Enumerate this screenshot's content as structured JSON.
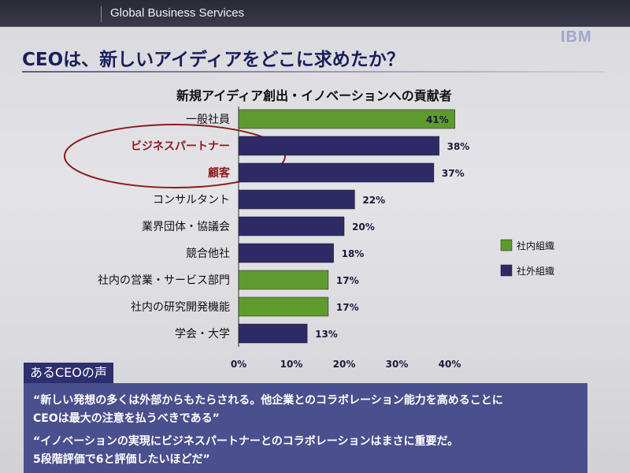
{
  "header": {
    "text": "Global Business Services",
    "logo": "IBM"
  },
  "page_title": "CEOは、新しいアイディアをどこに求めたか？",
  "chart_data": {
    "type": "bar",
    "orientation": "horizontal",
    "title": "新規アイディア創出・イノベーションへの貢献者",
    "categories": [
      "一般社員",
      "ビジネスパートナー",
      "顧客",
      "コンサルタント",
      "業界団体・協議会",
      "競合他社",
      "社内の営業・サービス部門",
      "社内の研究開発機能",
      "学会・大学"
    ],
    "values": [
      41,
      38,
      37,
      22,
      20,
      18,
      17,
      17,
      13
    ],
    "value_labels": [
      "41%",
      "38%",
      "37%",
      "22%",
      "20%",
      "18%",
      "17%",
      "17%",
      "13%"
    ],
    "groups": [
      "社内組織",
      "社外組織",
      "社外組織",
      "社外組織",
      "社外組織",
      "社外組織",
      "社内組織",
      "社内組織",
      "社外組織"
    ],
    "highlighted": [
      "ビジネスパートナー",
      "顧客"
    ],
    "xlim": [
      0,
      40
    ],
    "xticks": [
      0,
      10,
      20,
      30,
      40
    ],
    "xtick_labels": [
      "0%",
      "10%",
      "20%",
      "30%",
      "40%"
    ],
    "legend": [
      {
        "name": "社内組織",
        "color": "#5f9a2e"
      },
      {
        "name": "社外組織",
        "color": "#2e2a66"
      }
    ],
    "legend_position": "right",
    "grid": false
  },
  "colors": {
    "internal": "#5f9a2e",
    "external": "#2e2a66",
    "highlight_circle": "#8b1a1a"
  },
  "voices": {
    "heading": "あるCEOの声",
    "quotes": [
      "“新しい発想の多くは外部からもたらされる。他企業とのコラボレーション能力を高めることに",
      "CEOは最大の注意を払うべきである”",
      "“イノベーションの実現にビジネスパートナーとのコラボレーションはまさに重要だ。",
      "5段階評価で6と評価したいほどだ”"
    ]
  }
}
